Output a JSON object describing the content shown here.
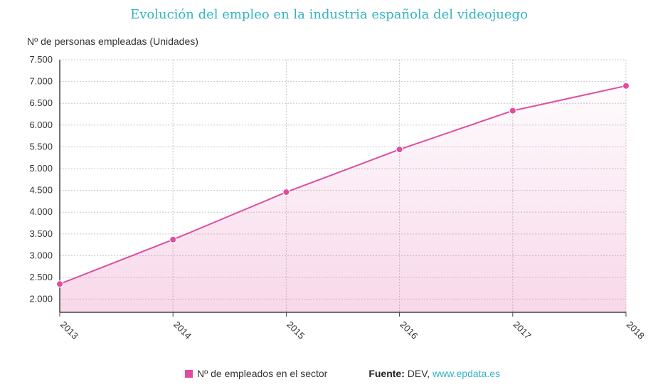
{
  "title": "Evolución del empleo en la industria española del videojuego",
  "chart_data": {
    "type": "area",
    "title": "Evolución del empleo en la industria española del videojuego",
    "ylabel": "Nº de personas empleadas (Unidades)",
    "xlabel": "",
    "x": [
      "2013",
      "2014",
      "2015",
      "2016",
      "2017",
      "2018"
    ],
    "series": [
      {
        "name": "Nº de empleados en el sector",
        "values": [
          2350,
          3370,
          4460,
          5440,
          6330,
          6900
        ],
        "color": "#de4d9f"
      }
    ],
    "ylim": [
      1700,
      7500
    ],
    "yticks": [
      2000,
      2500,
      3000,
      3500,
      4000,
      4500,
      5000,
      5500,
      6000,
      6500,
      7000,
      7500
    ],
    "ytick_labels": [
      "2.000",
      "2.500",
      "3.000",
      "3.500",
      "4.000",
      "4.500",
      "5.000",
      "5.500",
      "6.000",
      "6.500",
      "7.000",
      "7.500"
    ],
    "grid": true,
    "legend": "bottom"
  },
  "legend": {
    "label": "Nº de empleados en el sector",
    "color": "#de4d9f"
  },
  "source": {
    "label": "Fuente:",
    "text": "DEV,",
    "link": "www.epdata.es"
  }
}
